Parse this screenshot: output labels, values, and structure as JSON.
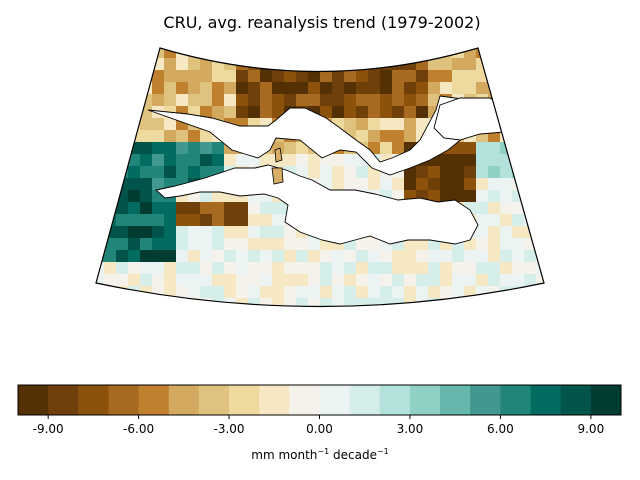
{
  "figure": {
    "title": "CRU, avg. reanalysis trend (1979-2002)"
  },
  "colorbar": {
    "ticks": [
      "-9.00",
      "-6.00",
      "-3.00",
      "0.00",
      "3.00",
      "6.00",
      "9.00"
    ],
    "label_main_1": "mm month",
    "label_sup_1": "−1",
    "label_main_2": " decade",
    "label_sup_2": "−1",
    "range": [
      -10,
      10
    ],
    "colors": [
      "#543005",
      "#70400a",
      "#8c510a",
      "#a86a20",
      "#bf812d",
      "#d3a95f",
      "#dfc27d",
      "#eeda9f",
      "#f6e8c3",
      "#f5f2eb",
      "#ebf4f3",
      "#d5eeea",
      "#b2e2db",
      "#8fd1c5",
      "#66b8ac",
      "#41988f",
      "#218579",
      "#016c5f",
      "#01544a",
      "#003c30"
    ]
  },
  "map": {
    "region": "Mediterranean",
    "land_fill": "#ffffff",
    "coastline_color": "#000000"
  }
}
